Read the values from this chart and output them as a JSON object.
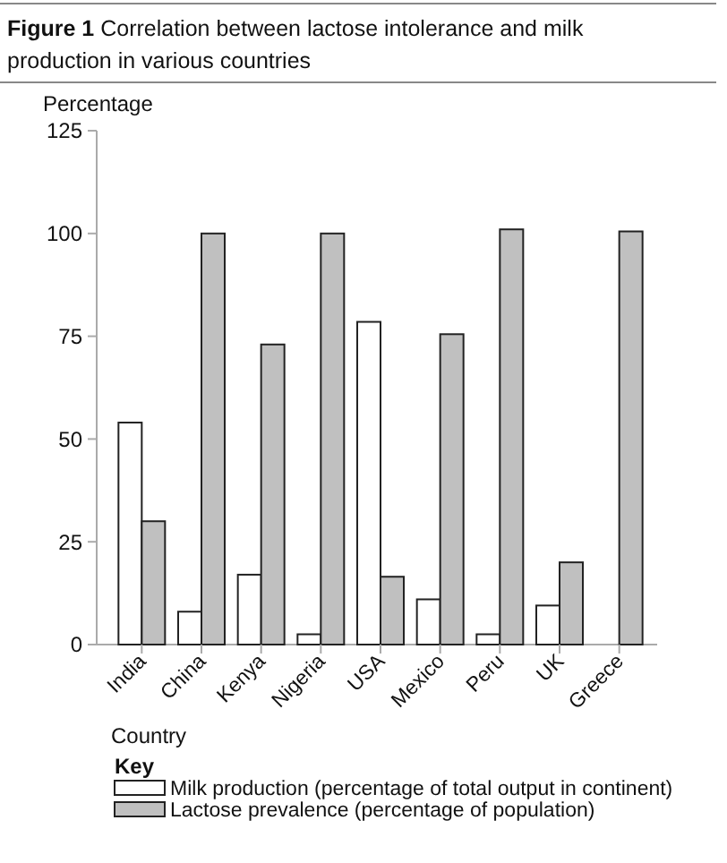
{
  "chart_data": {
    "type": "bar",
    "title": "Figure 1 Correlation between lactose intolerance and milk production in various countries",
    "xlabel": "Country",
    "ylabel": "Percentage",
    "legend_title": "Key",
    "categories": [
      "India",
      "China",
      "Kenya",
      "Nigeria",
      "USA",
      "Mexico",
      "Peru",
      "UK",
      "Greece"
    ],
    "series": [
      {
        "name": "Milk production (percentage of total output in continent)",
        "color": "#ffffff",
        "values": [
          54,
          8,
          17,
          2.5,
          78.5,
          11,
          2.5,
          9.5,
          null
        ]
      },
      {
        "name": "Lactose prevalence (percentage of population)",
        "color": "#c0c0c0",
        "values": [
          30,
          100,
          73,
          100,
          16.5,
          75.5,
          101,
          20,
          100.5
        ]
      }
    ],
    "ylim": [
      0,
      125
    ],
    "yticks": [
      0,
      25,
      50,
      75,
      100,
      125
    ],
    "grid": false,
    "legend": "bottom"
  }
}
